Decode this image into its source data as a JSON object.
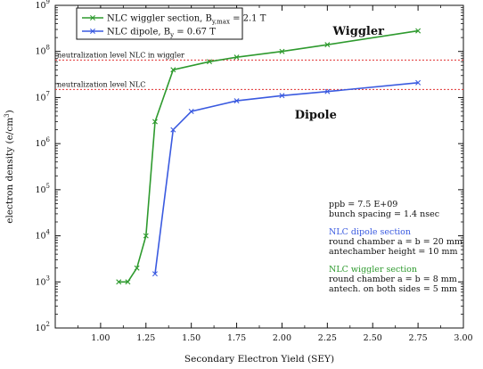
{
  "chart_data": {
    "type": "line",
    "xlabel": "Secondary Electron Yield (SEY)",
    "ylabel": "electron density (e/cm",
    "ylabel_sup": "3",
    "ylabel_end": ")",
    "xlim": [
      0.75,
      3.0
    ],
    "ylim": [
      100,
      1000000000
    ],
    "y_scale": "log",
    "x_ticks": [
      "1.00",
      "1.25",
      "1.50",
      "1.75",
      "2.00",
      "2.25",
      "2.50",
      "2.75",
      "3.00"
    ],
    "x_tick_values": [
      1.0,
      1.25,
      1.5,
      1.75,
      2.0,
      2.25,
      2.5,
      2.75,
      3.0
    ],
    "y_tick_exponents": [
      2,
      3,
      4,
      5,
      6,
      7,
      8,
      9
    ],
    "y_tick_base": "10",
    "series": [
      {
        "legend_prefix": "NLC wiggler section, B",
        "legend_sub": "y,max",
        "legend_suffix": " = 2.1 T",
        "color": "#2e9a2e",
        "points": [
          [
            1.1,
            1000
          ],
          [
            1.15,
            1000
          ],
          [
            1.2,
            2000
          ],
          [
            1.25,
            10000
          ],
          [
            1.3,
            3000000
          ],
          [
            1.4,
            40000000
          ],
          [
            1.6,
            60000000
          ],
          [
            1.75,
            75000000
          ],
          [
            2.0,
            100000000
          ],
          [
            2.25,
            140000000
          ],
          [
            2.75,
            280000000
          ]
        ]
      },
      {
        "legend_prefix": "NLC dipole, B",
        "legend_sub": "y",
        "legend_suffix": " = 0.67 T",
        "color": "#3a5ae0",
        "points": [
          [
            1.3,
            1500
          ],
          [
            1.4,
            2000000
          ],
          [
            1.5,
            5000000
          ],
          [
            1.75,
            8500000
          ],
          [
            2.0,
            11000000
          ],
          [
            2.25,
            13500000
          ],
          [
            2.75,
            21000000
          ]
        ]
      }
    ],
    "curve_labels": [
      {
        "text": "Wiggler",
        "x": 2.28,
        "y": 230000000
      },
      {
        "text": "Dipole",
        "x": 2.07,
        "y": 3500000
      }
    ],
    "neutralization_lines": [
      {
        "label": "neutralization level NLC in wiggler",
        "y": 65000000,
        "color": "#e03030"
      },
      {
        "label": "neutralization level NLC",
        "y": 15000000,
        "color": "#e03030"
      }
    ],
    "annotations": [
      {
        "text": "ppb = 7.5 E+09",
        "color": "#111111"
      },
      {
        "text": "bunch spacing = 1.4 nsec",
        "color": "#111111"
      },
      {
        "text": "",
        "color": "#111111"
      },
      {
        "text": "NLC dipole section",
        "color": "#3a5ae0"
      },
      {
        "text": "round chamber a = b = 20 mm",
        "color": "#111111"
      },
      {
        "text": "antechamber height = 10 mm",
        "color": "#111111"
      },
      {
        "text": "",
        "color": "#111111"
      },
      {
        "text": "NLC wiggler section",
        "color": "#2e9a2e"
      },
      {
        "text": "round chamber a = b = 8 mm",
        "color": "#111111"
      },
      {
        "text": "antech. on both sides = 5 mm",
        "color": "#111111"
      }
    ]
  }
}
